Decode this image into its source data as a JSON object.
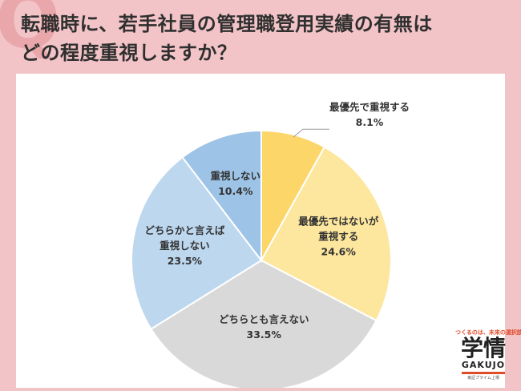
{
  "header": {
    "title_line1": "転職時に、若手社員の管理職登用実績の有無は",
    "title_line2": "どの程度重視しますか？"
  },
  "logo": {
    "tagline": "つくるのは、未来の選択肢",
    "name_kanji": "学情",
    "name_en": "GAKUJO",
    "subtitle": "東証プライム上場"
  },
  "chart_data": {
    "type": "pie",
    "title": "",
    "start_angle_deg": 0,
    "direction": "clockwise",
    "slices": [
      {
        "label_lines": [
          "最優先で重視する"
        ],
        "value": 8.1,
        "value_label": "8.1%",
        "color": "#fdd669"
      },
      {
        "label_lines": [
          "最優先ではないが",
          "重視する"
        ],
        "value": 24.6,
        "value_label": "24.6%",
        "color": "#fde79e"
      },
      {
        "label_lines": [
          "どちらとも言えない"
        ],
        "value": 33.5,
        "value_label": "33.5%",
        "color": "#d9d9d9"
      },
      {
        "label_lines": [
          "どちらかと言えば",
          "重視しない"
        ],
        "value": 23.5,
        "value_label": "23.5%",
        "color": "#bdd7ee"
      },
      {
        "label_lines": [
          "重視しない"
        ],
        "value": 10.4,
        "value_label": "10.4%",
        "color": "#9dc3e6"
      }
    ]
  }
}
